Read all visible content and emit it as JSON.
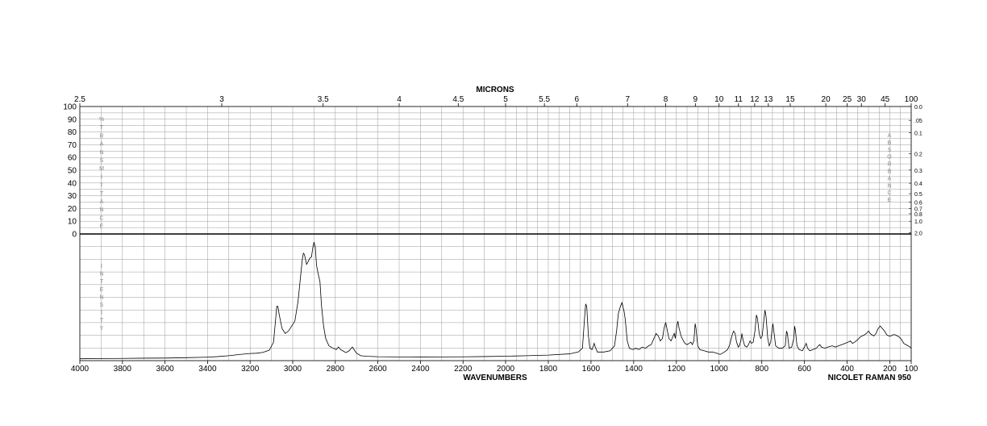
{
  "chart_data": {
    "type": "line",
    "title": "",
    "top_axis": {
      "label": "MICRONS",
      "ticks": [
        {
          "label": "2.5",
          "wn": 4000
        },
        {
          "label": "3",
          "wn": 3333.3
        },
        {
          "label": "3.5",
          "wn": 2857.1
        },
        {
          "label": "4",
          "wn": 2500
        },
        {
          "label": "4.5",
          "wn": 2222.2
        },
        {
          "label": "5",
          "wn": 2000
        },
        {
          "label": "5.5",
          "wn": 1818.2
        },
        {
          "label": "6",
          "wn": 1666.7
        },
        {
          "label": "7",
          "wn": 1428.6
        },
        {
          "label": "8",
          "wn": 1250
        },
        {
          "label": "9",
          "wn": 1111.1
        },
        {
          "label": "10",
          "wn": 1000
        },
        {
          "label": "11",
          "wn": 909.1
        },
        {
          "label": "12",
          "wn": 833.3
        },
        {
          "label": "13",
          "wn": 769.2
        },
        {
          "label": "15",
          "wn": 666.7
        },
        {
          "label": "20",
          "wn": 500
        },
        {
          "label": "25",
          "wn": 400
        },
        {
          "label": "30",
          "wn": 333.3
        },
        {
          "label": "45",
          "wn": 222.2
        },
        {
          "label": "100",
          "wn": 100
        }
      ]
    },
    "bottom_axis": {
      "label": "WAVENUMBERS",
      "xlim": [
        4000,
        100
      ],
      "ticks": [
        "4000",
        "3800",
        "3600",
        "3400",
        "3200",
        "3000",
        "2800",
        "2600",
        "2400",
        "2200",
        "2000",
        "1800",
        "1600",
        "1400",
        "1200",
        "1000",
        "800",
        "600",
        "400",
        "200",
        "100"
      ]
    },
    "transmittance_axis": {
      "label": "% TRANSMITTANCE",
      "ylim": [
        0,
        100
      ],
      "ticks": [
        "100",
        "90",
        "80",
        "70",
        "60",
        "50",
        "40",
        "30",
        "20",
        "10",
        "0"
      ]
    },
    "absorbance_axis": {
      "label": "ABSORBANCE",
      "ticks": [
        {
          "label": "0.0",
          "v": 0.0
        },
        {
          "label": ".05",
          "v": 0.05
        },
        {
          "label": "0.1",
          "v": 0.1
        },
        {
          "label": "0.2",
          "v": 0.2
        },
        {
          "label": "0.3",
          "v": 0.3
        },
        {
          "label": "0.4",
          "v": 0.4
        },
        {
          "label": "0.5",
          "v": 0.5
        },
        {
          "label": "0.6",
          "v": 0.6
        },
        {
          "label": "0.7",
          "v": 0.7
        },
        {
          "label": "0.8",
          "v": 0.8
        },
        {
          "label": "1.0",
          "v": 1.0
        },
        {
          "label": "2.0",
          "v": 2.0
        }
      ]
    },
    "intensity_axis": {
      "label": "INTENSITY",
      "ylim": [
        0,
        100
      ]
    },
    "grid": true,
    "series": [
      {
        "x_unit": "wavenumber (cm-1)",
        "y_unit": "relative Raman intensity",
        "points": [
          [
            4000,
            1.5
          ],
          [
            3900,
            1.7
          ],
          [
            3800,
            1.8
          ],
          [
            3700,
            2.0
          ],
          [
            3600,
            2.1
          ],
          [
            3500,
            2.4
          ],
          [
            3400,
            2.8
          ],
          [
            3350,
            3.3
          ],
          [
            3300,
            4.0
          ],
          [
            3250,
            5.0
          ],
          [
            3200,
            5.8
          ],
          [
            3170,
            6.0
          ],
          [
            3140,
            6.7
          ],
          [
            3110,
            8.5
          ],
          [
            3090,
            15
          ],
          [
            3080,
            34
          ],
          [
            3075,
            44
          ],
          [
            3070,
            44
          ],
          [
            3062,
            36
          ],
          [
            3050,
            26
          ],
          [
            3035,
            22
          ],
          [
            3020,
            24
          ],
          [
            3005,
            28
          ],
          [
            2990,
            32
          ],
          [
            2975,
            48
          ],
          [
            2965,
            65
          ],
          [
            2955,
            82
          ],
          [
            2950,
            87
          ],
          [
            2945,
            86
          ],
          [
            2935,
            78
          ],
          [
            2928,
            80
          ],
          [
            2920,
            83
          ],
          [
            2912,
            84
          ],
          [
            2905,
            92
          ],
          [
            2900,
            96
          ],
          [
            2894,
            92
          ],
          [
            2888,
            77
          ],
          [
            2880,
            70
          ],
          [
            2872,
            64
          ],
          [
            2865,
            45
          ],
          [
            2855,
            28
          ],
          [
            2845,
            18
          ],
          [
            2830,
            12
          ],
          [
            2810,
            10
          ],
          [
            2795,
            9
          ],
          [
            2785,
            11
          ],
          [
            2775,
            9
          ],
          [
            2765,
            8
          ],
          [
            2750,
            6.5
          ],
          [
            2735,
            8
          ],
          [
            2720,
            11
          ],
          [
            2712,
            9
          ],
          [
            2700,
            6
          ],
          [
            2680,
            4
          ],
          [
            2650,
            3.5
          ],
          [
            2600,
            3.2
          ],
          [
            2500,
            3.0
          ],
          [
            2400,
            2.9
          ],
          [
            2300,
            3.0
          ],
          [
            2200,
            3.1
          ],
          [
            2100,
            3.3
          ],
          [
            2000,
            3.6
          ],
          [
            1900,
            4.0
          ],
          [
            1800,
            4.5
          ],
          [
            1700,
            5.5
          ],
          [
            1660,
            7
          ],
          [
            1640,
            10
          ],
          [
            1632,
            30
          ],
          [
            1625,
            46
          ],
          [
            1620,
            44
          ],
          [
            1612,
            20
          ],
          [
            1605,
            10
          ],
          [
            1595,
            9
          ],
          [
            1585,
            14
          ],
          [
            1580,
            11
          ],
          [
            1570,
            7
          ],
          [
            1540,
            7
          ],
          [
            1510,
            8
          ],
          [
            1490,
            12
          ],
          [
            1480,
            24
          ],
          [
            1472,
            38
          ],
          [
            1462,
            44
          ],
          [
            1455,
            47
          ],
          [
            1445,
            40
          ],
          [
            1440,
            34
          ],
          [
            1430,
            16
          ],
          [
            1420,
            10
          ],
          [
            1405,
            9
          ],
          [
            1390,
            10
          ],
          [
            1375,
            9
          ],
          [
            1360,
            11
          ],
          [
            1345,
            10
          ],
          [
            1330,
            12
          ],
          [
            1318,
            13
          ],
          [
            1305,
            18
          ],
          [
            1295,
            22
          ],
          [
            1285,
            20
          ],
          [
            1275,
            16
          ],
          [
            1265,
            18
          ],
          [
            1258,
            26
          ],
          [
            1250,
            31
          ],
          [
            1242,
            24
          ],
          [
            1235,
            18
          ],
          [
            1225,
            16
          ],
          [
            1215,
            20
          ],
          [
            1210,
            22
          ],
          [
            1205,
            18
          ],
          [
            1198,
            28
          ],
          [
            1193,
            32
          ],
          [
            1187,
            26
          ],
          [
            1178,
            20
          ],
          [
            1170,
            17
          ],
          [
            1160,
            14
          ],
          [
            1150,
            13
          ],
          [
            1140,
            14
          ],
          [
            1132,
            15
          ],
          [
            1125,
            13
          ],
          [
            1118,
            16
          ],
          [
            1112,
            30
          ],
          [
            1108,
            26
          ],
          [
            1100,
            12
          ],
          [
            1090,
            9
          ],
          [
            1070,
            8
          ],
          [
            1050,
            7
          ],
          [
            1030,
            7
          ],
          [
            1010,
            6
          ],
          [
            995,
            5
          ],
          [
            985,
            6
          ],
          [
            975,
            7
          ],
          [
            960,
            9
          ],
          [
            950,
            13
          ],
          [
            940,
            20
          ],
          [
            932,
            24
          ],
          [
            925,
            22
          ],
          [
            918,
            15
          ],
          [
            910,
            11
          ],
          [
            905,
            12
          ],
          [
            898,
            16
          ],
          [
            893,
            22
          ],
          [
            888,
            17
          ],
          [
            880,
            12
          ],
          [
            870,
            11
          ],
          [
            862,
            13
          ],
          [
            855,
            16
          ],
          [
            848,
            14
          ],
          [
            840,
            15
          ],
          [
            832,
            24
          ],
          [
            825,
            37
          ],
          [
            820,
            34
          ],
          [
            812,
            22
          ],
          [
            805,
            18
          ],
          [
            798,
            20
          ],
          [
            792,
            30
          ],
          [
            785,
            41
          ],
          [
            780,
            36
          ],
          [
            772,
            18
          ],
          [
            765,
            12
          ],
          [
            758,
            15
          ],
          [
            752,
            25
          ],
          [
            748,
            30
          ],
          [
            742,
            22
          ],
          [
            735,
            12
          ],
          [
            720,
            10
          ],
          [
            705,
            10
          ],
          [
            690,
            12
          ],
          [
            684,
            24
          ],
          [
            680,
            22
          ],
          [
            672,
            10
          ],
          [
            660,
            11
          ],
          [
            650,
            18
          ],
          [
            646,
            28
          ],
          [
            642,
            24
          ],
          [
            635,
            12
          ],
          [
            625,
            9
          ],
          [
            610,
            8
          ],
          [
            597,
            12
          ],
          [
            592,
            14
          ],
          [
            585,
            10
          ],
          [
            575,
            8
          ],
          [
            560,
            9
          ],
          [
            545,
            10
          ],
          [
            535,
            12
          ],
          [
            528,
            13
          ],
          [
            520,
            11
          ],
          [
            505,
            10
          ],
          [
            490,
            11
          ],
          [
            470,
            12
          ],
          [
            455,
            11
          ],
          [
            440,
            12
          ],
          [
            425,
            13
          ],
          [
            410,
            14
          ],
          [
            395,
            15
          ],
          [
            385,
            16
          ],
          [
            375,
            14
          ],
          [
            365,
            15
          ],
          [
            350,
            17
          ],
          [
            340,
            19
          ],
          [
            330,
            20
          ],
          [
            318,
            21
          ],
          [
            310,
            22
          ],
          [
            300,
            24
          ],
          [
            292,
            22
          ],
          [
            285,
            21
          ],
          [
            275,
            20
          ],
          [
            265,
            22
          ],
          [
            255,
            26
          ],
          [
            245,
            28
          ],
          [
            235,
            26
          ],
          [
            225,
            24
          ],
          [
            215,
            21
          ],
          [
            205,
            20
          ],
          [
            195,
            20
          ],
          [
            185,
            21
          ],
          [
            175,
            21
          ],
          [
            165,
            20
          ],
          [
            155,
            19
          ],
          [
            145,
            17
          ],
          [
            135,
            14
          ],
          [
            125,
            13
          ],
          [
            115,
            12
          ],
          [
            105,
            11
          ],
          [
            100,
            10
          ]
        ]
      }
    ]
  },
  "footer": {
    "instrument": "NICOLET RAMAN 950"
  }
}
